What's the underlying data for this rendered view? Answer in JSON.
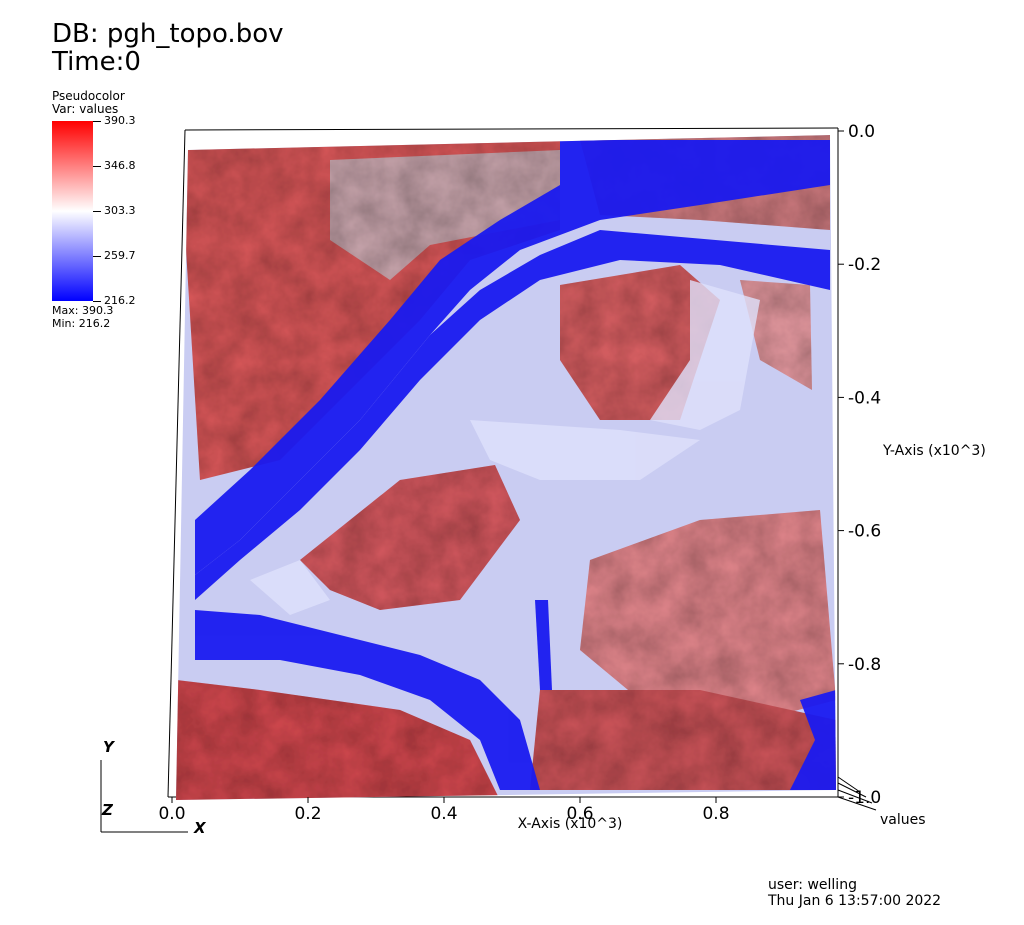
{
  "header": {
    "db_title": "DB: pgh_topo.bov",
    "time_label": "Time:0"
  },
  "legend": {
    "plot_type": "Pseudocolor",
    "var_label": "Var: values",
    "max_label": "Max:  390.3",
    "min_label": "Min:  216.2",
    "colors": {
      "low": "#0000ff",
      "mid": "#ffffff",
      "high": "#ff0000"
    }
  },
  "chart_data": {
    "type": "heatmap",
    "title": "DB: pgh_topo.bov",
    "variable": "values",
    "colorbar": {
      "ticks": [
        "390.3",
        "346.8",
        "303.3",
        "259.7",
        "216.2"
      ],
      "range": [
        216.2,
        390.3
      ]
    },
    "x_axis": {
      "label": "X-Axis (x10^3)",
      "ticks": [
        "0.0",
        "0.2",
        "0.4",
        "0.6",
        "0.8"
      ],
      "range": [
        0.0,
        1.0
      ]
    },
    "y_axis": {
      "label": "Y-Axis (x10^3)",
      "ticks": [
        "0.0",
        "-0.2",
        "-0.4",
        "-0.6",
        "-0.8",
        "-1.0"
      ],
      "range": [
        -1.0,
        0.0
      ]
    },
    "z_axis_label": "values",
    "triad": {
      "y": "Y",
      "z": "Z",
      "x": "X"
    }
  },
  "footer": {
    "user": "user: welling",
    "date": "Thu Jan  6 13:57:00 2022"
  }
}
